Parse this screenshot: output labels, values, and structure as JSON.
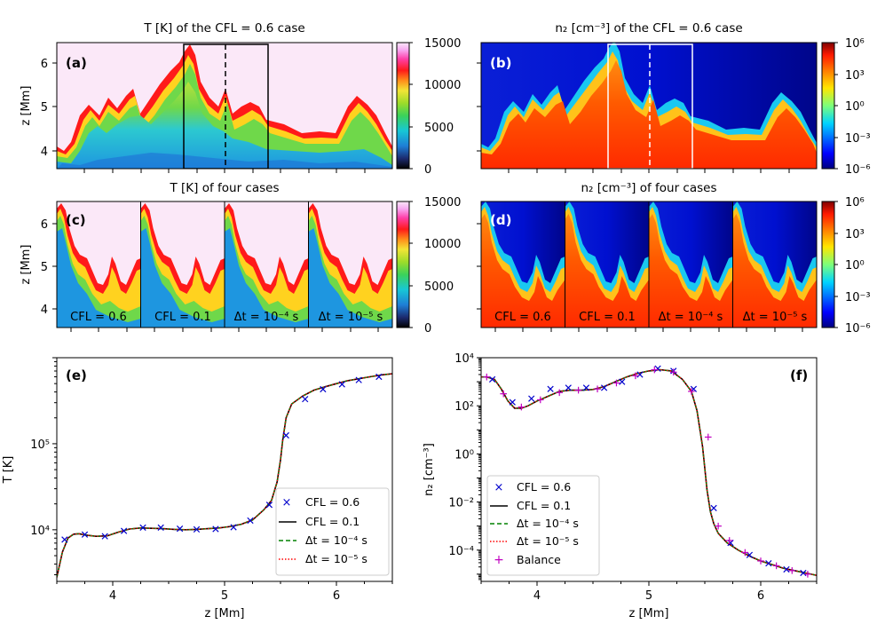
{
  "panels_top": {
    "a": {
      "label": "(a)",
      "title": "T [K] of the CFL = 0.6 case",
      "ylabel": "z [Mm]",
      "yticks": [
        "4",
        "5",
        "6"
      ],
      "colorbar": {
        "ticks": [
          "0",
          "5000",
          "10000",
          "15000"
        ],
        "range": [
          0,
          15000
        ]
      }
    },
    "b": {
      "label": "(b)",
      "title": "n₂ [cm⁻³] of the CFL = 0.6 case",
      "colorbar": {
        "ticks": [
          "10⁻⁶",
          "10⁻³",
          "10⁰",
          "10³",
          "10⁶"
        ],
        "range": [
          -6,
          6
        ]
      }
    },
    "c": {
      "label": "(c)",
      "title": "T [K] of four cases",
      "ylabel": "z [Mm]",
      "yticks": [
        "4",
        "5",
        "6"
      ],
      "cases": [
        "CFL = 0.6",
        "CFL = 0.1",
        "Δt = 10⁻⁴ s",
        "Δt = 10⁻⁵ s"
      ],
      "colorbar": {
        "ticks": [
          "0",
          "5000",
          "10000",
          "15000"
        ],
        "range": [
          0,
          15000
        ]
      }
    },
    "d": {
      "label": "(d)",
      "title": "n₂ [cm⁻³] of four cases",
      "cases": [
        "CFL = 0.6",
        "CFL = 0.1",
        "Δt = 10⁻⁴ s",
        "Δt = 10⁻⁵ s"
      ],
      "colorbar": {
        "ticks": [
          "10⁻⁶",
          "10⁻³",
          "10⁰",
          "10³",
          "10⁶"
        ],
        "range": [
          -6,
          6
        ]
      }
    }
  },
  "chart_data": [
    {
      "id": "e",
      "type": "line",
      "label": "(e)",
      "xlabel": "z [Mm]",
      "ylabel": "T [K]",
      "xlim": [
        3.5,
        6.5
      ],
      "ylim_log10": [
        3.4,
        6.0
      ],
      "yscale": "log",
      "xticks": [
        "4",
        "5",
        "6"
      ],
      "yticks": [
        "10⁴",
        "10⁵"
      ],
      "x": [
        3.5,
        3.55,
        3.6,
        3.65,
        3.7,
        3.75,
        3.85,
        3.95,
        4.05,
        4.15,
        4.25,
        4.35,
        4.45,
        4.55,
        4.65,
        4.75,
        4.85,
        4.95,
        5.05,
        5.15,
        5.25,
        5.35,
        5.42,
        5.47,
        5.5,
        5.52,
        5.55,
        5.6,
        5.7,
        5.8,
        5.9,
        6.0,
        6.1,
        6.2,
        6.3,
        6.4,
        6.5
      ],
      "series": [
        {
          "name": "CFL = 0.1",
          "values": [
            2800,
            5500,
            8000,
            8900,
            9000,
            8700,
            8400,
            8500,
            9400,
            10200,
            10500,
            10400,
            10300,
            10100,
            10000,
            10100,
            10300,
            10500,
            10900,
            11600,
            13000,
            17000,
            22000,
            36000,
            65000,
            110000,
            200000,
            290000,
            360000,
            420000,
            460000,
            500000,
            540000,
            570000,
            600000,
            630000,
            650000
          ]
        }
      ],
      "markers": {
        "name": "CFL = 0.6",
        "x": [
          3.57,
          3.75,
          3.93,
          4.1,
          4.27,
          4.43,
          4.6,
          4.75,
          4.92,
          5.08,
          5.23,
          5.4,
          5.55,
          5.72,
          5.88,
          6.05,
          6.2,
          6.38
        ],
        "values": [
          7700,
          8800,
          8400,
          9700,
          10600,
          10600,
          10300,
          10100,
          10200,
          10700,
          12800,
          19500,
          125000,
          330000,
          430000,
          490000,
          550000,
          600000
        ]
      },
      "legend": [
        "CFL = 0.6",
        "CFL = 0.1",
        "Δt = 10⁻⁴ s",
        "Δt = 10⁻⁵ s"
      ]
    },
    {
      "id": "f",
      "type": "line",
      "label": "(f)",
      "xlabel": "z [Mm]",
      "ylabel": "n₂ [cm⁻³]",
      "xlim": [
        3.5,
        6.5
      ],
      "ylim_log10": [
        -5.3,
        4.0
      ],
      "yscale": "log",
      "xticks": [
        "4",
        "5",
        "6"
      ],
      "yticks": [
        "10⁻⁴",
        "10⁻²",
        "10⁰",
        "10²",
        "10⁴"
      ],
      "x": [
        3.5,
        3.55,
        3.62,
        3.68,
        3.74,
        3.8,
        3.86,
        3.92,
        4.0,
        4.1,
        4.2,
        4.3,
        4.4,
        4.5,
        4.6,
        4.7,
        4.8,
        4.9,
        5.0,
        5.1,
        5.2,
        5.3,
        5.38,
        5.43,
        5.48,
        5.52,
        5.55,
        5.58,
        5.62,
        5.7,
        5.8,
        5.9,
        6.0,
        6.1,
        6.2,
        6.3,
        6.4,
        6.5
      ],
      "series": [
        {
          "name": "CFL = 0.1",
          "values_log10": [
            3.2,
            3.2,
            3.1,
            2.7,
            2.2,
            1.9,
            1.9,
            2.0,
            2.2,
            2.4,
            2.6,
            2.65,
            2.65,
            2.68,
            2.8,
            3.0,
            3.2,
            3.35,
            3.45,
            3.5,
            3.45,
            3.1,
            2.6,
            1.8,
            0.3,
            -1.5,
            -2.4,
            -2.9,
            -3.3,
            -3.7,
            -4.0,
            -4.25,
            -4.45,
            -4.6,
            -4.75,
            -4.85,
            -4.95,
            -5.05
          ]
        }
      ],
      "markers": {
        "name": "CFL = 0.6",
        "x": [
          3.6,
          3.78,
          3.95,
          4.12,
          4.28,
          4.44,
          4.6,
          4.76,
          4.92,
          5.08,
          5.22,
          5.4,
          5.58,
          5.73,
          5.9,
          6.07,
          6.23,
          6.38
        ],
        "values_log10": [
          3.1,
          2.15,
          2.3,
          2.7,
          2.75,
          2.75,
          2.75,
          3.0,
          3.3,
          3.55,
          3.45,
          2.7,
          -2.25,
          -3.7,
          -4.2,
          -4.55,
          -4.8,
          -4.95
        ]
      },
      "balance": {
        "name": "Balance",
        "x": [
          3.55,
          3.7,
          3.86,
          4.03,
          4.2,
          4.37,
          4.54,
          4.71,
          4.88,
          5.05,
          5.22,
          5.38,
          5.53,
          5.62,
          5.72,
          5.86,
          6.0,
          6.14,
          6.28,
          6.42
        ],
        "values_log10": [
          3.2,
          2.5,
          1.95,
          2.25,
          2.55,
          2.65,
          2.7,
          2.95,
          3.25,
          3.5,
          3.4,
          2.6,
          0.7,
          -3.0,
          -3.6,
          -4.1,
          -4.45,
          -4.65,
          -4.85,
          -5.0
        ]
      },
      "legend": [
        "CFL = 0.6",
        "CFL = 0.1",
        "Δt = 10⁻⁴ s",
        "Δt = 10⁻⁵ s",
        "Balance"
      ]
    }
  ]
}
